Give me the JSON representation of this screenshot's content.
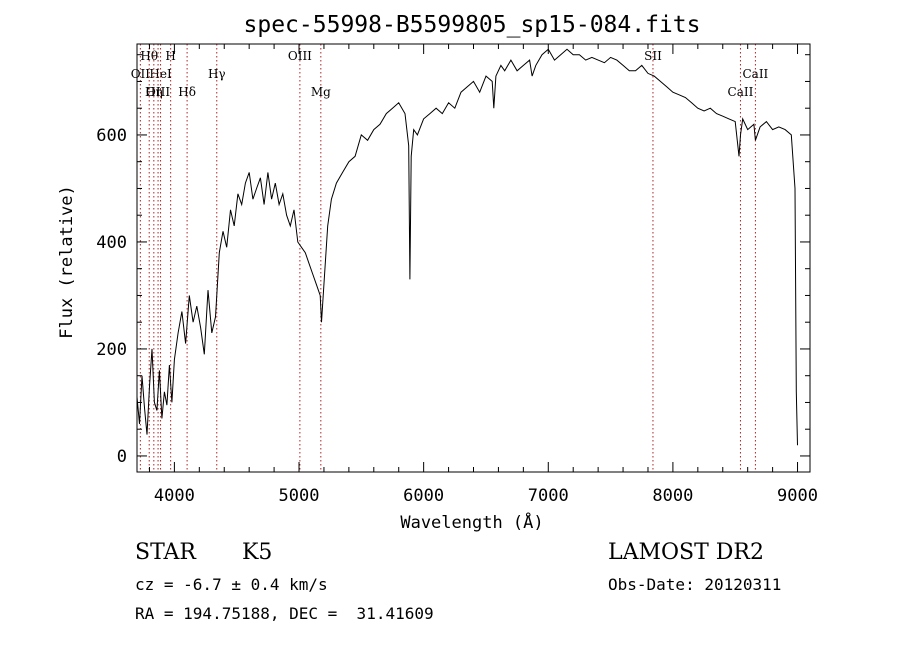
{
  "chart_data": {
    "type": "line",
    "title": "spec-55998-B5599805_sp15-084.fits",
    "xlabel": "Wavelength (Å)",
    "ylabel": "Flux (relative)",
    "xlim": [
      3700,
      9100
    ],
    "ylim": [
      -30,
      770
    ],
    "x_ticks": [
      4000,
      5000,
      6000,
      7000,
      8000,
      9000
    ],
    "y_ticks": [
      0,
      200,
      400,
      600
    ],
    "grid": false,
    "series": [
      {
        "x": [
          3700,
          3720,
          3740,
          3760,
          3780,
          3800,
          3820,
          3840,
          3860,
          3880,
          3900,
          3920,
          3940,
          3960,
          3980,
          4000,
          4030,
          4060,
          4090,
          4120,
          4150,
          4180,
          4210,
          4240,
          4270,
          4300,
          4330,
          4360,
          4390,
          4420,
          4450,
          4480,
          4510,
          4540,
          4570,
          4600,
          4630,
          4660,
          4690,
          4720,
          4750,
          4780,
          4810,
          4840,
          4870,
          4900,
          4930,
          4960,
          4990,
          5020,
          5050,
          5080,
          5110,
          5140,
          5170,
          5180,
          5200,
          5230,
          5260,
          5300,
          5350,
          5400,
          5450,
          5500,
          5550,
          5600,
          5650,
          5700,
          5750,
          5800,
          5850,
          5880,
          5890,
          5900,
          5920,
          5950,
          6000,
          6050,
          6100,
          6150,
          6200,
          6250,
          6300,
          6350,
          6400,
          6450,
          6500,
          6550,
          6563,
          6580,
          6620,
          6650,
          6700,
          6750,
          6800,
          6850,
          6870,
          6900,
          6950,
          7000,
          7050,
          7100,
          7150,
          7200,
          7250,
          7300,
          7350,
          7400,
          7450,
          7500,
          7550,
          7600,
          7650,
          7700,
          7750,
          7800,
          7850,
          7900,
          7950,
          8000,
          8050,
          8100,
          8150,
          8200,
          8250,
          8300,
          8350,
          8400,
          8450,
          8500,
          8530,
          8542,
          8560,
          8600,
          8650,
          8662,
          8700,
          8750,
          8800,
          8850,
          8900,
          8950,
          8980,
          8990,
          9000
        ],
        "y": [
          110,
          60,
          150,
          90,
          40,
          130,
          200,
          100,
          85,
          160,
          70,
          120,
          95,
          170,
          100,
          180,
          230,
          270,
          210,
          300,
          250,
          280,
          240,
          190,
          310,
          230,
          260,
          380,
          420,
          390,
          460,
          430,
          490,
          470,
          510,
          530,
          480,
          500,
          520,
          470,
          530,
          480,
          510,
          470,
          490,
          450,
          430,
          460,
          400,
          390,
          380,
          360,
          340,
          320,
          300,
          250,
          320,
          430,
          480,
          510,
          530,
          550,
          560,
          600,
          590,
          610,
          620,
          640,
          650,
          660,
          640,
          580,
          330,
          560,
          610,
          600,
          630,
          640,
          650,
          640,
          660,
          650,
          680,
          690,
          700,
          680,
          710,
          700,
          650,
          710,
          730,
          720,
          740,
          720,
          730,
          740,
          710,
          730,
          750,
          760,
          740,
          750,
          760,
          750,
          750,
          740,
          745,
          740,
          735,
          745,
          740,
          730,
          720,
          720,
          730,
          715,
          710,
          700,
          690,
          680,
          675,
          670,
          660,
          650,
          645,
          650,
          640,
          635,
          630,
          625,
          560,
          600,
          630,
          610,
          620,
          590,
          615,
          625,
          610,
          615,
          610,
          600,
          500,
          120,
          20
        ]
      }
    ],
    "line_markers": [
      {
        "label": "Hθ",
        "wavelength": 3798,
        "row": 1
      },
      {
        "label": "H",
        "wavelength": 3970,
        "row": 1
      },
      {
        "label": "OII",
        "wavelength": 3727,
        "row": 2
      },
      {
        "label": "HeI",
        "wavelength": 3889,
        "row": 2
      },
      {
        "label": "Hγ",
        "wavelength": 4340,
        "row": 2
      },
      {
        "label": "CaII",
        "wavelength": 8662,
        "row": 2
      },
      {
        "label": "OIII",
        "wavelength": 3869,
        "row": 3
      },
      {
        "label": "Hη",
        "wavelength": 3835,
        "row": 3
      },
      {
        "label": "Hδ",
        "wavelength": 4102,
        "row": 3
      },
      {
        "label": "Mg",
        "wavelength": 5175,
        "row": 3
      },
      {
        "label": "CaII",
        "wavelength": 8542,
        "row": 3
      },
      {
        "label": "OIII",
        "wavelength": 5007,
        "row": 1
      },
      {
        "label": "SII",
        "wavelength": 7840,
        "row": 1
      }
    ],
    "colors": {
      "spectrum": "#000000",
      "markers": "#b22222",
      "axes": "#000000"
    }
  },
  "info": {
    "object_class": "STAR",
    "subclass": "K5",
    "survey": "LAMOST DR2",
    "cz": "cz = -6.7 ± 0.4 km/s",
    "obs_date": "Obs-Date: 20120311",
    "coords": "RA = 194.75188, DEC =  31.41609"
  }
}
